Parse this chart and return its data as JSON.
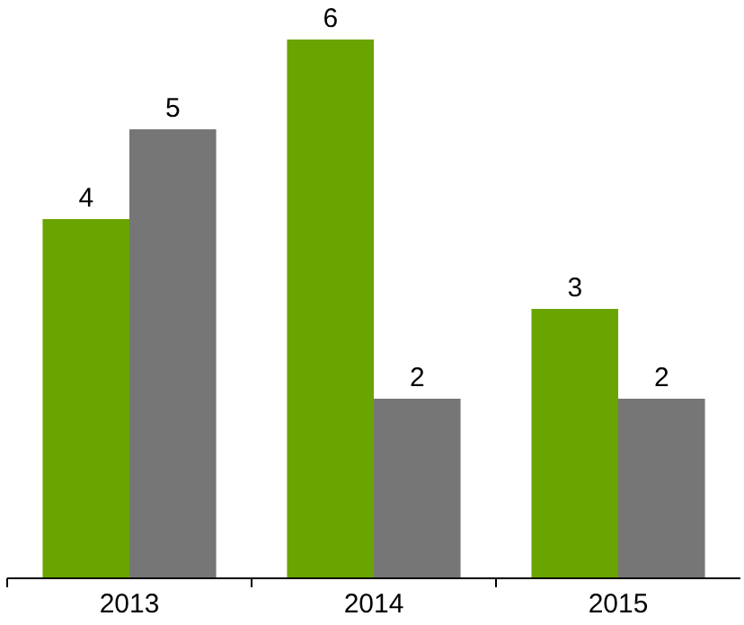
{
  "chart_data": {
    "type": "bar",
    "categories": [
      "2013",
      "2014",
      "2015"
    ],
    "series": [
      {
        "color": "#6aa400",
        "values": [
          4,
          6,
          3
        ]
      },
      {
        "color": "#767676",
        "values": [
          5,
          2,
          2
        ]
      }
    ],
    "data_labels": true
  }
}
